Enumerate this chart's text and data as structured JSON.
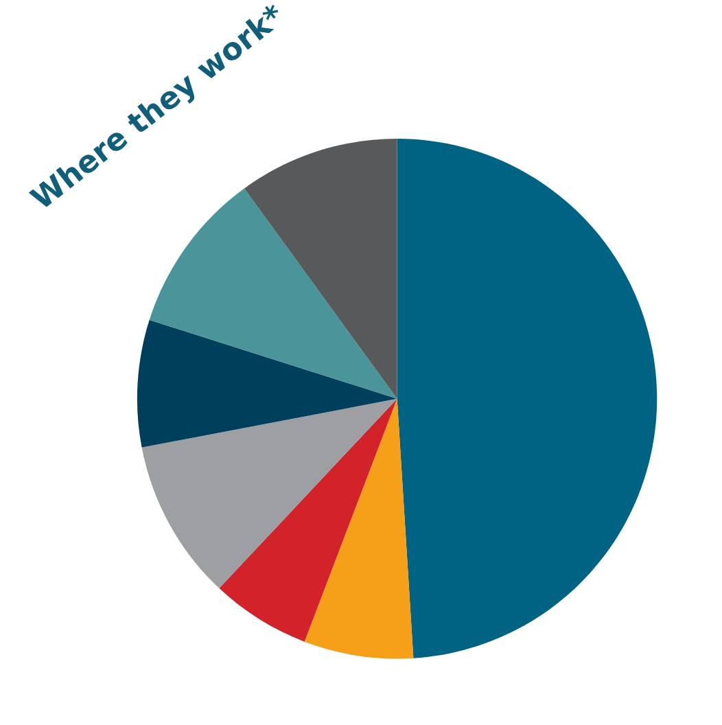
{
  "chart_data": {
    "type": "pie",
    "title": "Where they work*",
    "categories": [
      null,
      null,
      null,
      null,
      null,
      null,
      null
    ],
    "values": [
      49,
      6.8,
      6.2,
      10,
      7.9,
      10.1,
      10
    ],
    "colors": [
      "#006384",
      "#f6a01a",
      "#d2232a",
      "#9d9fa2",
      "#003f5c",
      "#4a9599",
      "#58595b"
    ]
  }
}
